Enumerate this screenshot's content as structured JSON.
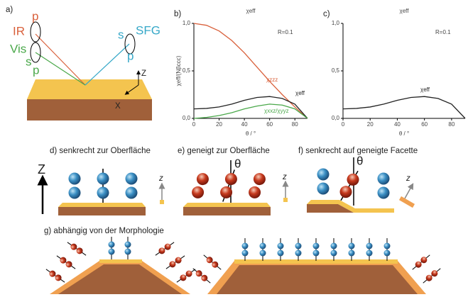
{
  "figure": {
    "panel_a": {
      "label": "a)",
      "ir": "IR",
      "ir_pol": "p",
      "vis": "Vis",
      "vis_pol_s": "s",
      "vis_pol_p": "p",
      "sfg_pol_s": "s",
      "sfg": "SFG",
      "sfg_pol_p": "p",
      "axis_z": "Z",
      "axis_x": "X"
    },
    "panel_d": {
      "label": "d) senkrecht zur Oberfläche",
      "axis": "Z",
      "molecule_axis": "z"
    },
    "panel_e": {
      "label": "e) geneigt zur Oberfläche",
      "angle": "θ",
      "molecule_axis": "z"
    },
    "panel_f": {
      "label": "f) senkrecht auf geneigte Facette",
      "angle": "θ",
      "molecule_axis": "z"
    },
    "panel_g": {
      "label": "g) abhängig von der Morphologie"
    }
  },
  "chart_data": [
    {
      "type": "line",
      "label": "b)",
      "title": "χeff",
      "xlabel": "θ / °",
      "ylabel": "χeff/(Nβccc)",
      "annotation": "R=0.1",
      "x": [
        0,
        10,
        20,
        30,
        40,
        50,
        60,
        70,
        80,
        90
      ],
      "series": [
        {
          "name": "χzzz",
          "color": "#d9603b",
          "values": [
            1.0,
            0.98,
            0.92,
            0.82,
            0.69,
            0.54,
            0.39,
            0.25,
            0.12,
            0.0
          ]
        },
        {
          "name": "χeff",
          "color": "#222222",
          "values": [
            0.1,
            0.105,
            0.12,
            0.15,
            0.19,
            0.22,
            0.23,
            0.21,
            0.15,
            0.0
          ]
        },
        {
          "name": "χxxz/χyyz",
          "color": "#4aa84a",
          "values": [
            0.0,
            0.01,
            0.03,
            0.06,
            0.1,
            0.13,
            0.15,
            0.14,
            0.1,
            0.0
          ]
        }
      ],
      "xlim": [
        0,
        90
      ],
      "ylim": [
        0,
        1
      ],
      "xticks": [
        0,
        20,
        40,
        60,
        80
      ],
      "yticks": [
        {
          "value": 0,
          "label": "0,0"
        },
        {
          "value": 0.5,
          "label": "0,5"
        },
        {
          "value": 1,
          "label": "1,0"
        }
      ]
    },
    {
      "type": "line",
      "label": "c)",
      "title": "χeff",
      "xlabel": "θ / °",
      "annotation": "R=0.1",
      "x": [
        0,
        10,
        20,
        30,
        40,
        50,
        60,
        70,
        80,
        90
      ],
      "series": [
        {
          "name": "χeff",
          "color": "#222222",
          "values": [
            0.1,
            0.105,
            0.12,
            0.15,
            0.19,
            0.22,
            0.23,
            0.21,
            0.15,
            0.0
          ]
        }
      ],
      "xlim": [
        0,
        90
      ],
      "ylim": [
        0,
        1
      ],
      "xticks": [
        0,
        20,
        40,
        60,
        80
      ],
      "yticks": [
        {
          "value": 0,
          "label": "0,0"
        },
        {
          "value": 0.5,
          "label": "0,5"
        },
        {
          "value": 1,
          "label": "1,0"
        }
      ]
    }
  ]
}
